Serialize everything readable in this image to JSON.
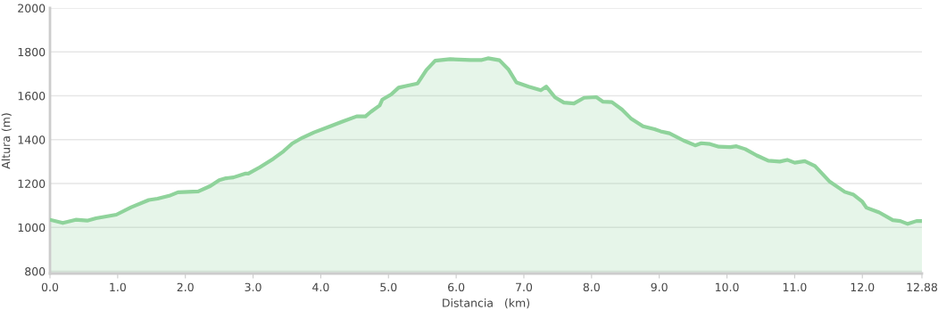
{
  "chart_data": {
    "type": "area",
    "xlabel": "Distancia   (km)",
    "ylabel": "Altura (m)",
    "xlim": [
      0,
      12.88
    ],
    "ylim": [
      790,
      2000
    ],
    "xticks": [
      {
        "value": 0,
        "label": "0.0"
      },
      {
        "value": 1,
        "label": "1.0"
      },
      {
        "value": 2,
        "label": "2.0"
      },
      {
        "value": 3,
        "label": "3.0"
      },
      {
        "value": 4,
        "label": "4.0"
      },
      {
        "value": 5,
        "label": "5.0"
      },
      {
        "value": 6,
        "label": "6.0"
      },
      {
        "value": 7,
        "label": "7.0"
      },
      {
        "value": 8,
        "label": "8.0"
      },
      {
        "value": 9,
        "label": "9.0"
      },
      {
        "value": 10,
        "label": "10.0"
      },
      {
        "value": 11,
        "label": "11.0"
      },
      {
        "value": 12,
        "label": "12.0"
      },
      12.88
    ],
    "yticks": [
      800,
      1000,
      1200,
      1400,
      1600,
      1800,
      2000
    ],
    "grid": "y",
    "marker": "none",
    "line_style": "solid",
    "series": [
      {
        "color": "#8fd39b",
        "x": [
          0,
          0.19,
          0.38,
          0.55,
          0.68,
          0.98,
          1.2,
          1.46,
          1.59,
          1.76,
          1.89,
          2.19,
          2.37,
          2.5,
          2.6,
          2.71,
          2.88,
          2.93,
          3.1,
          3.3,
          3.45,
          3.58,
          3.73,
          3.9,
          4.14,
          4.31,
          4.53,
          4.66,
          4.74,
          4.87,
          4.91,
          5.04,
          5.15,
          5.26,
          5.43,
          5.56,
          5.69,
          5.91,
          6.21,
          6.38,
          6.47,
          6.64,
          6.77,
          6.89,
          7.07,
          7.25,
          7.33,
          7.46,
          7.59,
          7.74,
          7.89,
          8.07,
          8.17,
          8.3,
          8.45,
          8.58,
          8.76,
          8.93,
          9.02,
          9.15,
          9.36,
          9.53,
          9.62,
          9.75,
          9.88,
          10.05,
          10.14,
          10.27,
          10.44,
          10.61,
          10.78,
          10.89,
          11.0,
          11.15,
          11.3,
          11.52,
          11.74,
          11.87,
          12.0,
          12.06,
          12.25,
          12.45,
          12.56,
          12.67,
          12.8,
          12.88
        ],
        "values": [
          1035,
          1020,
          1035,
          1031,
          1042,
          1058,
          1092,
          1125,
          1131,
          1144,
          1160,
          1164,
          1189,
          1215,
          1224,
          1228,
          1245,
          1245,
          1274,
          1313,
          1347,
          1383,
          1409,
          1433,
          1461,
          1481,
          1506,
          1506,
          1527,
          1556,
          1583,
          1606,
          1637,
          1645,
          1656,
          1717,
          1760,
          1767,
          1763,
          1763,
          1771,
          1762,
          1721,
          1661,
          1642,
          1625,
          1642,
          1593,
          1569,
          1565,
          1591,
          1594,
          1573,
          1571,
          1537,
          1497,
          1461,
          1448,
          1438,
          1429,
          1396,
          1374,
          1384,
          1380,
          1368,
          1366,
          1370,
          1357,
          1328,
          1304,
          1300,
          1308,
          1295,
          1302,
          1280,
          1208,
          1162,
          1149,
          1117,
          1090,
          1068,
          1033,
          1029,
          1016,
          1029,
          1029
        ]
      }
    ]
  }
}
